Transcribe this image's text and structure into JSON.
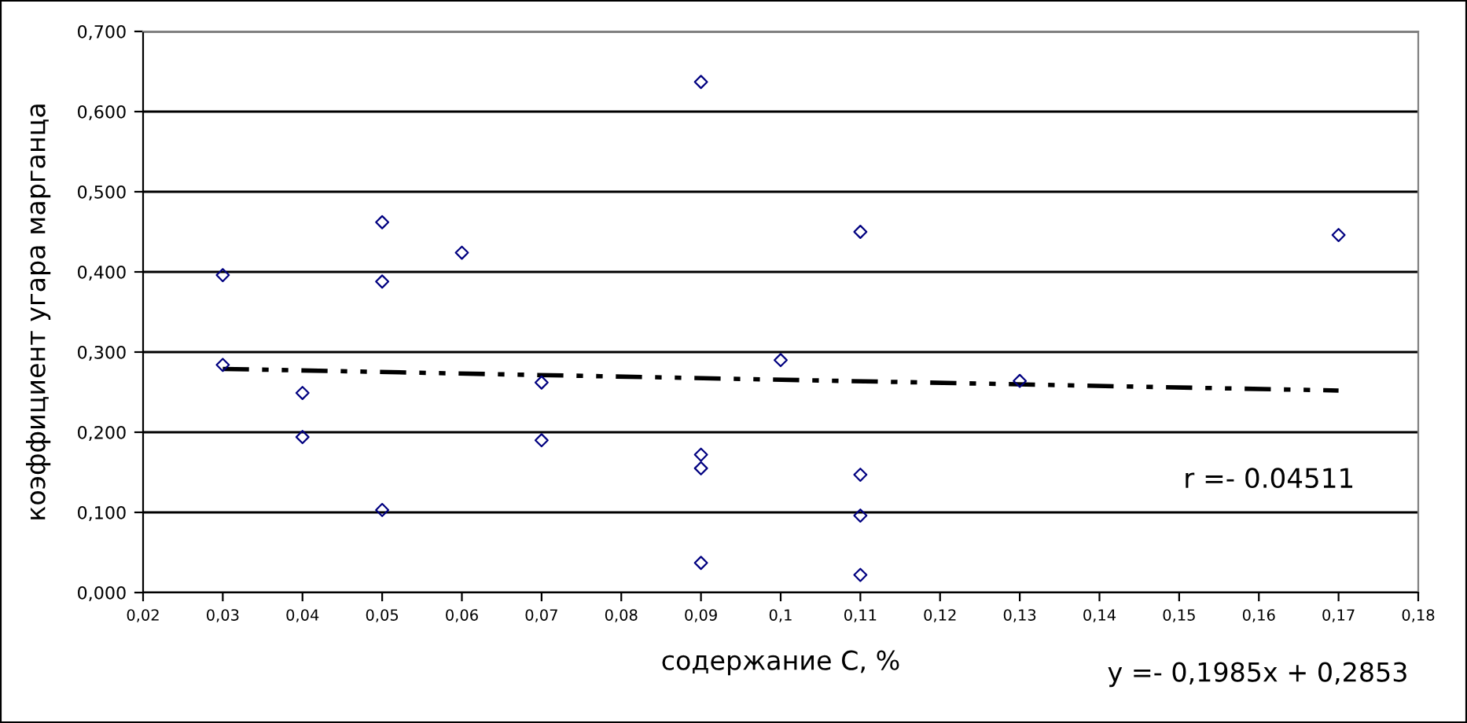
{
  "chart_data": {
    "type": "scatter",
    "xlabel": "содержание C, %",
    "ylabel": "коэффициент угара марганца",
    "annotations": [
      "r =- 0.04511",
      "y =- 0,1985x + 0,2853"
    ],
    "xlim": [
      0.02,
      0.18
    ],
    "ylim": [
      0,
      0.7
    ],
    "xticks": [
      {
        "value": 0.02,
        "label": "0,02"
      },
      {
        "value": 0.03,
        "label": "0,03"
      },
      {
        "value": 0.04,
        "label": "0,04"
      },
      {
        "value": 0.05,
        "label": "0,05"
      },
      {
        "value": 0.06,
        "label": "0,06"
      },
      {
        "value": 0.07,
        "label": "0,07"
      },
      {
        "value": 0.08,
        "label": "0,08"
      },
      {
        "value": 0.09,
        "label": "0,09"
      },
      {
        "value": 0.1,
        "label": "0,1"
      },
      {
        "value": 0.11,
        "label": "0,11"
      },
      {
        "value": 0.12,
        "label": "0,12"
      },
      {
        "value": 0.13,
        "label": "0,13"
      },
      {
        "value": 0.14,
        "label": "0,14"
      },
      {
        "value": 0.15,
        "label": "0,15"
      },
      {
        "value": 0.16,
        "label": "0,16"
      },
      {
        "value": 0.17,
        "label": "0,17"
      },
      {
        "value": 0.18,
        "label": "0,18"
      }
    ],
    "yticks": [
      {
        "value": 0,
        "label": "0,000"
      },
      {
        "value": 0.1,
        "label": "0,100"
      },
      {
        "value": 0.2,
        "label": "0,200"
      },
      {
        "value": 0.3,
        "label": "0,300"
      },
      {
        "value": 0.4,
        "label": "0,400"
      },
      {
        "value": 0.5,
        "label": "0,500"
      },
      {
        "value": 0.6,
        "label": "0,600"
      },
      {
        "value": 0.7,
        "label": "0,700"
      }
    ],
    "grid": "y",
    "marker": "diamond",
    "series": [
      {
        "color": "#000080",
        "x": [
          0.03,
          0.03,
          0.04,
          0.04,
          0.05,
          0.05,
          0.05,
          0.06,
          0.07,
          0.07,
          0.09,
          0.09,
          0.09,
          0.09,
          0.1,
          0.11,
          0.11,
          0.11,
          0.11,
          0.13,
          0.17
        ],
        "values": [
          0.396,
          0.284,
          0.249,
          0.194,
          0.462,
          0.388,
          0.103,
          0.424,
          0.262,
          0.19,
          0.637,
          0.172,
          0.155,
          0.037,
          0.29,
          0.45,
          0.147,
          0.096,
          0.022,
          0.264,
          0.446
        ]
      },
      {
        "type": "line",
        "color": "#000000",
        "line_style": "dashed",
        "marker": "none",
        "x": [
          0.03,
          0.17
        ],
        "values": [
          0.279,
          0.252
        ]
      }
    ]
  }
}
